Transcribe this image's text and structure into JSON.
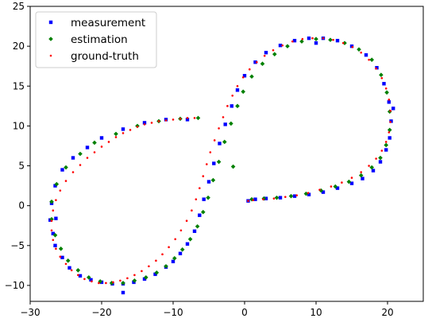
{
  "chart_data": {
    "type": "scatter",
    "title": "",
    "xlabel": "",
    "ylabel": "",
    "xlim": [
      -30,
      25
    ],
    "ylim": [
      -12,
      25
    ],
    "xticks": [
      -30,
      -20,
      -10,
      0,
      10,
      20
    ],
    "yticks": [
      -10,
      -5,
      0,
      5,
      10,
      15,
      20,
      25
    ],
    "xtick_labels": [
      "−30",
      "−20",
      "−10",
      "0",
      "10",
      "20"
    ],
    "ytick_labels": [
      "−10",
      "−5",
      "0",
      "5",
      "10",
      "15",
      "20",
      "25"
    ],
    "grid": false,
    "legend_position": "top-left",
    "legend": [
      {
        "label": "measurement",
        "marker": "square",
        "color": "#0000ff"
      },
      {
        "label": "estimation",
        "marker": "diamond",
        "color": "#008000"
      },
      {
        "label": "ground-truth",
        "marker": "dot",
        "color": "#ff0000"
      }
    ],
    "series": [
      {
        "name": "measurement",
        "marker": "square",
        "color": "#0000ff",
        "x": [
          -8,
          -11,
          -14,
          -17,
          -20,
          -22,
          -24,
          -25.5,
          -26.5,
          -27,
          -27.2,
          -26.8,
          -26.5,
          -25.5,
          -24.5,
          -23,
          -21.5,
          -20,
          -18.5,
          -17,
          -15.5,
          -14,
          -12.5,
          -11,
          -10,
          -9,
          -8,
          -7,
          -6.3,
          -5.7,
          -5,
          -4.3,
          -3.5,
          -2.7,
          -1.8,
          -1,
          0,
          1.5,
          3,
          5,
          7,
          9,
          11,
          13,
          15,
          17,
          18.5,
          19.5,
          20.2,
          20.5,
          20.3,
          19.8,
          19,
          18,
          16.5,
          15,
          13,
          11,
          9,
          7,
          5,
          3,
          1.5,
          0.5,
          -17,
          -26.4,
          10,
          20.8
        ],
        "y": [
          10.8,
          10.8,
          10.4,
          9.6,
          8.5,
          7.3,
          6,
          4.5,
          2.5,
          0.3,
          -1.8,
          -3.5,
          -5,
          -6.5,
          -7.8,
          -8.8,
          -9.3,
          -9.6,
          -9.8,
          -9.8,
          -9.6,
          -9.2,
          -8.6,
          -7.7,
          -7,
          -6,
          -4.8,
          -3.2,
          -1.2,
          0.8,
          3,
          5.3,
          7.8,
          10.2,
          12.5,
          14.5,
          16.3,
          18,
          19.2,
          20.1,
          20.7,
          21,
          21,
          20.7,
          20,
          18.9,
          17.3,
          15.3,
          13,
          10.6,
          8.5,
          7,
          5.5,
          4.4,
          3.4,
          2.8,
          2.2,
          1.7,
          1.4,
          1.2,
          1,
          0.9,
          0.8,
          0.6,
          -10.9,
          -1.6,
          20.4,
          12.2
        ]
      },
      {
        "name": "estimation",
        "marker": "diamond",
        "color": "#008000",
        "x": [
          -6.5,
          -9,
          -12,
          -15,
          -18,
          -21,
          -23,
          -25,
          -26.3,
          -27,
          -27,
          -26.5,
          -25.7,
          -24.7,
          -23.3,
          -21.8,
          -20.2,
          -18.6,
          -17,
          -15.4,
          -13.8,
          -12.3,
          -11,
          -9.8,
          -8.7,
          -7.6,
          -6.6,
          -5.8,
          -5.1,
          -4.4,
          -3.6,
          -2.8,
          -1.9,
          -1,
          -0.2,
          1,
          2.5,
          4.2,
          6,
          8,
          10,
          12,
          14,
          16,
          17.8,
          19.1,
          19.9,
          20.3,
          20.3,
          19.8,
          19,
          17.8,
          16.3,
          14.6,
          12.7,
          10.7,
          8.6,
          6.5,
          4.5,
          2.7,
          1,
          -1.6
        ],
        "y": [
          11,
          10.9,
          10.6,
          10,
          9,
          7.9,
          6.5,
          4.8,
          2.7,
          0.5,
          -1.7,
          -3.7,
          -5.4,
          -6.9,
          -8.1,
          -9,
          -9.5,
          -9.7,
          -9.7,
          -9.4,
          -9,
          -8.4,
          -7.6,
          -6.6,
          -5.5,
          -4.2,
          -2.6,
          -0.8,
          1,
          3.2,
          5.5,
          8,
          10.3,
          12.5,
          14.3,
          16.2,
          17.8,
          19,
          20,
          20.6,
          20.9,
          20.8,
          20.4,
          19.6,
          18.3,
          16.4,
          14.2,
          11.8,
          9.5,
          7.6,
          6,
          4.8,
          3.8,
          3,
          2.4,
          1.9,
          1.5,
          1.2,
          1,
          0.9,
          0.8,
          4.9
        ]
      },
      {
        "name": "ground-truth",
        "marker": "dot",
        "color": "#ff0000",
        "x": [
          -7,
          -8,
          -9,
          -10,
          -11,
          -12,
          -13,
          -14,
          -15,
          -16,
          -17,
          -18,
          -19,
          -20,
          -21,
          -22,
          -23,
          -24,
          -25,
          -25.8,
          -26.4,
          -26.8,
          -27,
          -27,
          -26.8,
          -26.4,
          -25.8,
          -25,
          -24.2,
          -23.3,
          -22.4,
          -21.4,
          -20.4,
          -19.4,
          -18.4,
          -17.4,
          -16.4,
          -15.4,
          -14.4,
          -13.4,
          -12.4,
          -11.5,
          -10.6,
          -9.7,
          -8.9,
          -8.1,
          -7.4,
          -6.8,
          -6.3,
          -5.8,
          -5.3,
          -4.8,
          -4.2,
          -3.6,
          -3,
          -2.4,
          -1.7,
          -1,
          -0.2,
          0.7,
          1.7,
          2.8,
          4,
          5.3,
          6.7,
          8.1,
          9.5,
          11,
          12.4,
          13.8,
          15.1,
          16.3,
          17.4,
          18.4,
          19.2,
          19.8,
          20.2,
          20.4,
          20.4,
          20.2,
          19.8,
          19.2,
          18.4,
          17.4,
          16.3,
          15,
          13.6,
          12.1,
          10.5,
          8.9,
          7.3,
          5.7,
          4.1,
          2.6,
          1.2,
          0.5
        ],
        "y": [
          11,
          11,
          10.9,
          10.8,
          10.7,
          10.6,
          10.4,
          10.2,
          9.9,
          9.5,
          9.1,
          8.6,
          8,
          7.4,
          6.7,
          6,
          5.1,
          4.2,
          3.1,
          1.9,
          0.7,
          -0.6,
          -1.9,
          -3.1,
          -4.3,
          -5.4,
          -6.4,
          -7.3,
          -8.1,
          -8.7,
          -9.2,
          -9.5,
          -9.7,
          -9.7,
          -9.6,
          -9.4,
          -9.1,
          -8.7,
          -8.2,
          -7.6,
          -6.9,
          -6.1,
          -5.2,
          -4.2,
          -3.1,
          -1.9,
          -0.6,
          0.8,
          2.2,
          3.7,
          5.2,
          6.7,
          8.2,
          9.7,
          11.1,
          12.5,
          13.8,
          15,
          16.1,
          17.1,
          18,
          18.8,
          19.5,
          20.1,
          20.6,
          20.9,
          21,
          21,
          20.8,
          20.4,
          19.9,
          19.2,
          18.3,
          17.2,
          16,
          14.7,
          13.3,
          11.9,
          10.5,
          9.2,
          8,
          6.9,
          5.9,
          5,
          4.2,
          3.5,
          2.9,
          2.4,
          2,
          1.6,
          1.3,
          1.1,
          0.9,
          0.8,
          0.7,
          0.6
        ]
      }
    ]
  }
}
